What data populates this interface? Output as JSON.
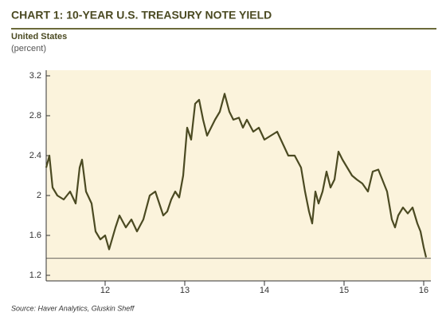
{
  "chart_data": {
    "type": "line",
    "title": "CHART 1: 10-YEAR U.S. TREASURY NOTE YIELD",
    "subtitle": "United States",
    "y_label": "(percent)",
    "source": "Source: Haver Analytics, Gluskin Sheff",
    "x": [
      11.26,
      11.3,
      11.34,
      11.4,
      11.48,
      11.56,
      11.63,
      11.68,
      11.71,
      11.76,
      11.83,
      11.88,
      11.94,
      12.0,
      12.05,
      12.13,
      12.18,
      12.26,
      12.33,
      12.4,
      12.48,
      12.56,
      12.63,
      12.68,
      12.73,
      12.78,
      12.83,
      12.88,
      12.93,
      12.98,
      13.03,
      13.08,
      13.13,
      13.18,
      13.23,
      13.28,
      13.33,
      13.38,
      13.44,
      13.5,
      13.56,
      13.61,
      13.68,
      13.73,
      13.78,
      13.86,
      13.93,
      14.0,
      14.08,
      14.16,
      14.23,
      14.3,
      14.38,
      14.46,
      14.51,
      14.56,
      14.6,
      14.64,
      14.68,
      14.73,
      14.78,
      14.83,
      14.88,
      14.93,
      14.98,
      15.04,
      15.1,
      15.16,
      15.23,
      15.3,
      15.36,
      15.43,
      15.48,
      15.54,
      15.6,
      15.64,
      15.68,
      15.74,
      15.8,
      15.86,
      15.92,
      15.96,
      16.0,
      16.03
    ],
    "series": [
      {
        "name": "10-Year U.S. Treasury Note Yield",
        "color": "#4b4a22",
        "values": [
          2.28,
          2.4,
          2.08,
          2.0,
          1.96,
          2.04,
          1.92,
          2.28,
          2.36,
          2.04,
          1.92,
          1.64,
          1.56,
          1.6,
          1.46,
          1.68,
          1.8,
          1.68,
          1.76,
          1.64,
          1.76,
          2.0,
          2.04,
          1.92,
          1.8,
          1.84,
          1.96,
          2.04,
          1.98,
          2.2,
          2.68,
          2.56,
          2.92,
          2.96,
          2.76,
          2.6,
          2.68,
          2.76,
          2.84,
          3.02,
          2.84,
          2.76,
          2.78,
          2.68,
          2.76,
          2.64,
          2.68,
          2.56,
          2.6,
          2.64,
          2.52,
          2.4,
          2.4,
          2.28,
          2.04,
          1.84,
          1.72,
          2.04,
          1.92,
          2.04,
          2.24,
          2.08,
          2.16,
          2.44,
          2.36,
          2.28,
          2.2,
          2.16,
          2.12,
          2.04,
          2.24,
          2.26,
          2.16,
          2.04,
          1.76,
          1.68,
          1.8,
          1.88,
          1.82,
          1.88,
          1.72,
          1.64,
          1.48,
          1.38
        ]
      }
    ],
    "reference_line": 1.37,
    "xlim": [
      11.26,
      16.09
    ],
    "xticks": [
      12,
      13,
      14,
      15,
      16
    ],
    "ylim": [
      1.144,
      3.256
    ],
    "yticks": [
      1.2,
      1.6,
      2.0,
      2.4,
      2.8,
      3.2
    ],
    "background": "#fbf3dc"
  }
}
